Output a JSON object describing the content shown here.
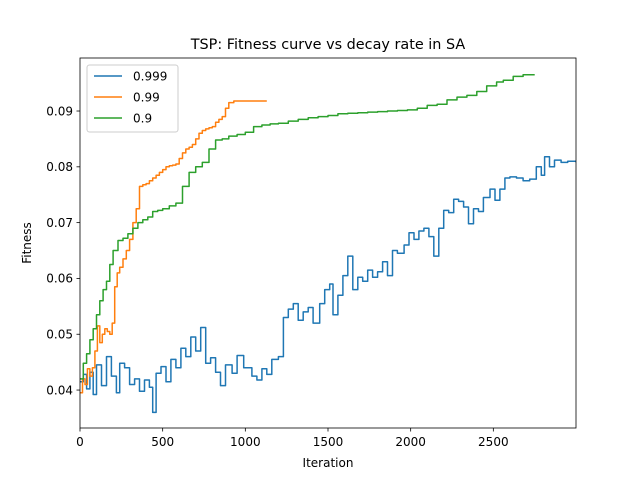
{
  "chart_data": {
    "type": "line",
    "title": "TSP: Fitness curve vs decay rate in SA",
    "xlabel": "Iteration",
    "ylabel": "Fitness",
    "xlim": [
      0,
      3000
    ],
    "ylim": [
      0.0332,
      0.0995
    ],
    "x_ticks": [
      0,
      500,
      1000,
      1500,
      2000,
      2500
    ],
    "x_tick_labels": [
      "0",
      "500",
      "1000",
      "1500",
      "2000",
      "2500"
    ],
    "y_ticks": [
      0.04,
      0.05,
      0.06,
      0.07,
      0.08,
      0.09
    ],
    "y_tick_labels": [
      "0.04",
      "0.05",
      "0.06",
      "0.07",
      "0.08",
      "0.09"
    ],
    "grid": false,
    "legend_position": "top-left",
    "series": [
      {
        "name": "0.999",
        "color": "#1f77b4",
        "x": [
          0,
          20,
          40,
          60,
          80,
          100,
          130,
          160,
          190,
          220,
          240,
          270,
          300,
          330,
          360,
          390,
          420,
          440,
          460,
          490,
          520,
          550,
          580,
          610,
          640,
          670,
          700,
          730,
          760,
          790,
          820,
          850,
          880,
          920,
          950,
          990,
          1010,
          1040,
          1070,
          1100,
          1130,
          1160,
          1200,
          1230,
          1260,
          1290,
          1320,
          1350,
          1380,
          1410,
          1450,
          1480,
          1510,
          1530,
          1560,
          1590,
          1620,
          1650,
          1680,
          1710,
          1740,
          1770,
          1800,
          1830,
          1860,
          1890,
          1920,
          1960,
          1990,
          2020,
          2050,
          2080,
          2110,
          2140,
          2170,
          2200,
          2230,
          2260,
          2290,
          2320,
          2350,
          2380,
          2410,
          2440,
          2480,
          2510,
          2540,
          2570,
          2600,
          2640,
          2680,
          2720,
          2760,
          2790,
          2810,
          2840,
          2870,
          2910,
          2950,
          3000
        ],
        "y": [
          0.0415,
          0.0428,
          0.0402,
          0.0432,
          0.0392,
          0.0445,
          0.0408,
          0.046,
          0.0425,
          0.0395,
          0.0448,
          0.044,
          0.041,
          0.042,
          0.0398,
          0.0418,
          0.0405,
          0.036,
          0.043,
          0.0442,
          0.0415,
          0.0455,
          0.044,
          0.0475,
          0.046,
          0.0495,
          0.047,
          0.0512,
          0.0448,
          0.0458,
          0.0432,
          0.0408,
          0.0445,
          0.043,
          0.0462,
          0.044,
          0.044,
          0.0425,
          0.0418,
          0.0438,
          0.0428,
          0.0455,
          0.046,
          0.053,
          0.0545,
          0.0555,
          0.0525,
          0.054,
          0.0548,
          0.052,
          0.0555,
          0.058,
          0.059,
          0.0535,
          0.057,
          0.0605,
          0.064,
          0.058,
          0.0602,
          0.0595,
          0.0615,
          0.0602,
          0.0612,
          0.063,
          0.0605,
          0.065,
          0.0645,
          0.066,
          0.0682,
          0.067,
          0.0685,
          0.069,
          0.0675,
          0.064,
          0.069,
          0.0722,
          0.0718,
          0.0742,
          0.0738,
          0.0728,
          0.0698,
          0.0725,
          0.072,
          0.0745,
          0.076,
          0.074,
          0.076,
          0.078,
          0.0782,
          0.078,
          0.0775,
          0.0778,
          0.08,
          0.0785,
          0.0818,
          0.08,
          0.0812,
          0.0808,
          0.081,
          0.0808
        ]
      },
      {
        "name": "0.99",
        "color": "#ff7f0e",
        "x": [
          0,
          15,
          30,
          45,
          60,
          75,
          90,
          105,
          120,
          135,
          150,
          165,
          180,
          195,
          210,
          225,
          240,
          260,
          280,
          300,
          320,
          340,
          360,
          380,
          400,
          420,
          440,
          460,
          480,
          500,
          520,
          540,
          560,
          580,
          600,
          620,
          640,
          660,
          680,
          700,
          720,
          740,
          760,
          780,
          800,
          820,
          840,
          860,
          880,
          900,
          930,
          960,
          1000,
          1040,
          1080,
          1130
        ],
        "y": [
          0.0395,
          0.042,
          0.041,
          0.0438,
          0.0425,
          0.044,
          0.047,
          0.0515,
          0.0485,
          0.05,
          0.051,
          0.0505,
          0.05,
          0.052,
          0.0585,
          0.061,
          0.062,
          0.0635,
          0.065,
          0.067,
          0.07,
          0.0725,
          0.0765,
          0.0768,
          0.077,
          0.0775,
          0.078,
          0.0785,
          0.079,
          0.0795,
          0.08,
          0.0802,
          0.0803,
          0.0805,
          0.0815,
          0.0825,
          0.0832,
          0.0835,
          0.084,
          0.085,
          0.086,
          0.0865,
          0.0868,
          0.087,
          0.0872,
          0.088,
          0.0885,
          0.089,
          0.0905,
          0.0915,
          0.0918,
          0.0918,
          0.0918,
          0.0918,
          0.0918,
          0.0918
        ]
      },
      {
        "name": "0.9",
        "color": "#2ca02c",
        "x": [
          0,
          20,
          40,
          60,
          80,
          100,
          120,
          140,
          160,
          180,
          200,
          230,
          260,
          290,
          320,
          350,
          380,
          410,
          440,
          470,
          500,
          540,
          580,
          620,
          660,
          700,
          740,
          780,
          820,
          860,
          900,
          950,
          1000,
          1050,
          1100,
          1150,
          1200,
          1260,
          1320,
          1380,
          1440,
          1500,
          1560,
          1620,
          1680,
          1740,
          1800,
          1860,
          1920,
          1980,
          2040,
          2100,
          2160,
          2220,
          2280,
          2340,
          2400,
          2460,
          2520,
          2560,
          2620,
          2680,
          2750
        ],
        "y": [
          0.042,
          0.0448,
          0.0465,
          0.049,
          0.051,
          0.0535,
          0.056,
          0.058,
          0.0595,
          0.0625,
          0.065,
          0.0668,
          0.0672,
          0.068,
          0.069,
          0.07,
          0.0705,
          0.071,
          0.072,
          0.0722,
          0.0725,
          0.073,
          0.0735,
          0.0765,
          0.079,
          0.08,
          0.0808,
          0.0832,
          0.0848,
          0.085,
          0.0855,
          0.0858,
          0.0862,
          0.0872,
          0.0875,
          0.0877,
          0.0878,
          0.0882,
          0.0885,
          0.0888,
          0.089,
          0.0892,
          0.0895,
          0.0896,
          0.0897,
          0.0898,
          0.0899,
          0.09,
          0.0901,
          0.0902,
          0.0905,
          0.091,
          0.0912,
          0.092,
          0.0925,
          0.0928,
          0.0935,
          0.0945,
          0.0952,
          0.0955,
          0.0962,
          0.0965,
          0.0965
        ]
      }
    ]
  }
}
